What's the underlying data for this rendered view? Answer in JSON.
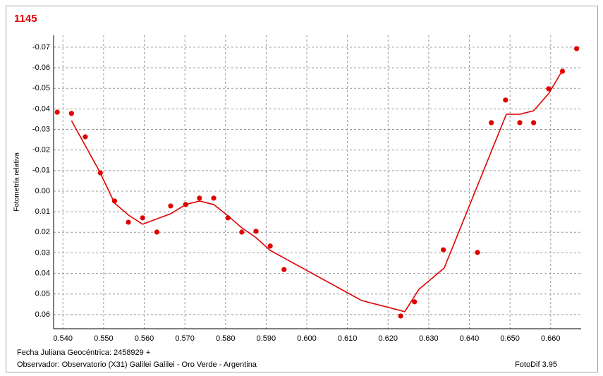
{
  "chart_data": {
    "type": "scatter",
    "title": "1145",
    "ylabel": "Fotometría relativa",
    "annotations": [
      "Fecha Juliana Geocéntrica: 2458929 +",
      "Observador: Observatorio (X31) Galilei Galilei - Oro Verde - Argentina",
      "FotoDif 3.95"
    ],
    "xlim": [
      0.5377,
      0.6675
    ],
    "xticks": [
      {
        "value": 0.54,
        "label": "0.540"
      },
      {
        "value": 0.55,
        "label": "0.550"
      },
      {
        "value": 0.56,
        "label": "0.560"
      },
      {
        "value": 0.57,
        "label": "0.570"
      },
      {
        "value": 0.58,
        "label": "0.580"
      },
      {
        "value": 0.59,
        "label": "0.590"
      },
      {
        "value": 0.6,
        "label": "0.600"
      },
      {
        "value": 0.61,
        "label": "0.610"
      },
      {
        "value": 0.62,
        "label": "0.620"
      },
      {
        "value": 0.63,
        "label": "0.630"
      },
      {
        "value": 0.64,
        "label": "0.640"
      },
      {
        "value": 0.65,
        "label": "0.650"
      },
      {
        "value": 0.66,
        "label": "0.660"
      }
    ],
    "ylim": [
      0.0669,
      -0.0758
    ],
    "yticks": [
      -0.07,
      -0.06,
      -0.05,
      -0.04,
      -0.03,
      -0.02,
      -0.01,
      {
        "value": 0,
        "label": "0.00"
      },
      0.01,
      0.02,
      0.03,
      0.04,
      0.05,
      0.06
    ],
    "grid": true,
    "series": [
      {
        "style": "markers",
        "color": "#e00000",
        "x": [
          0.5386,
          0.5421,
          0.5455,
          0.5492,
          0.5527,
          0.5561,
          0.5596,
          0.5631,
          0.5665,
          0.5702,
          0.5736,
          0.5771,
          0.5806,
          0.584,
          0.5875,
          0.591,
          0.5944,
          0.6231,
          0.6265,
          0.6336,
          0.642,
          0.6454,
          0.6489,
          0.6524,
          0.6558,
          0.6595,
          0.6629,
          0.6664
        ],
        "values": [
          -0.0384,
          -0.0378,
          -0.0264,
          -0.0089,
          0.0048,
          0.0151,
          0.013,
          0.0199,
          0.0072,
          0.0065,
          0.0034,
          0.0034,
          0.013,
          0.0199,
          0.0195,
          0.0267,
          0.0381,
          0.0607,
          0.0538,
          0.0285,
          0.0298,
          -0.0333,
          -0.0443,
          -0.0333,
          -0.0333,
          -0.0498,
          -0.0583,
          -0.0693
        ]
      },
      {
        "style": "line",
        "color": "#e00000",
        "x": [
          0.5421,
          0.549,
          0.5527,
          0.5561,
          0.5596,
          0.5665,
          0.5702,
          0.5736,
          0.5771,
          0.5806,
          0.584,
          0.5875,
          0.591,
          0.6135,
          0.6241,
          0.6276,
          0.6338,
          0.6491,
          0.6524,
          0.6558,
          0.6595,
          0.6629
        ],
        "values": [
          -0.0343,
          -0.0096,
          0.0058,
          0.0116,
          0.0161,
          0.011,
          0.0065,
          0.0048,
          0.0065,
          0.012,
          0.0178,
          0.0226,
          0.0288,
          0.0532,
          0.0586,
          0.0477,
          0.0374,
          -0.0374,
          -0.0374,
          -0.0391,
          -0.0474,
          -0.0587
        ]
      }
    ]
  }
}
